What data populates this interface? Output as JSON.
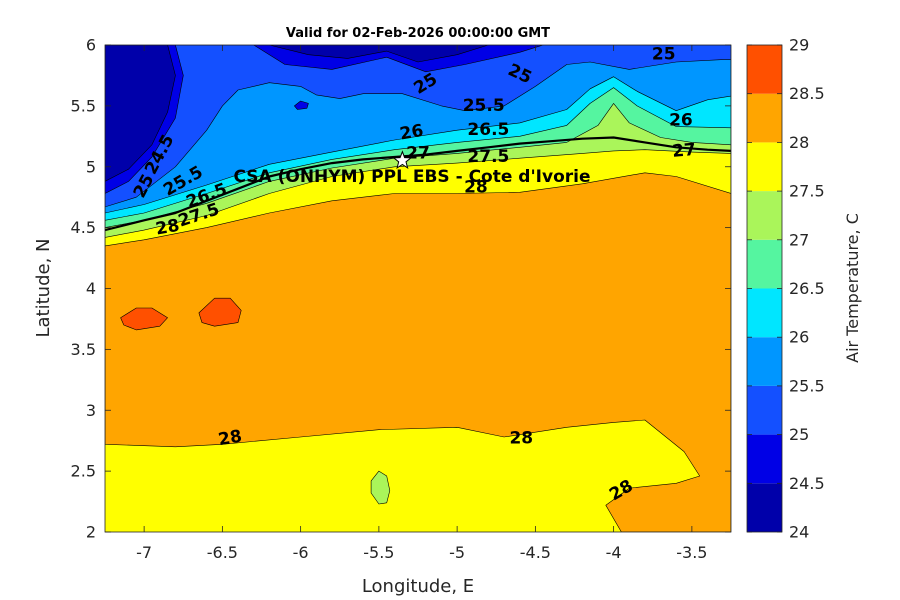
{
  "chart_data": {
    "type": "contourf",
    "title": "Valid for 02-Feb-2026 00:00:00 GMT",
    "xlabel": "Longitude, E",
    "ylabel": "Latitude, N",
    "xlim": [
      -7.25,
      -3.25
    ],
    "ylim": [
      2,
      6
    ],
    "xticks": [
      -7,
      -6.5,
      -6,
      -5.5,
      -5,
      -4.5,
      -4,
      -3.5
    ],
    "yticks": [
      2,
      2.5,
      3,
      3.5,
      4,
      4.5,
      5,
      5.5,
      6
    ],
    "colorbar": {
      "label": "Air Temperature, C",
      "levels": [
        24,
        24.5,
        25,
        25.5,
        26,
        26.5,
        27,
        27.5,
        28,
        28.5,
        29
      ],
      "colors": [
        "#0000aa",
        "#0000e6",
        "#1450ff",
        "#0096ff",
        "#00e6ff",
        "#55f5a0",
        "#aaf55a",
        "#ffff00",
        "#ffa500",
        "#ff5000",
        "#ff0000"
      ]
    },
    "bands": [
      {
        "level": 28,
        "color": "#ffa500",
        "points": [
          [
            -7.25,
            2.72
          ],
          [
            -6.8,
            2.7
          ],
          [
            -6.5,
            2.72
          ],
          [
            -6.0,
            2.78
          ],
          [
            -5.5,
            2.84
          ],
          [
            -5.0,
            2.86
          ],
          [
            -4.7,
            2.78
          ],
          [
            -4.3,
            2.86
          ],
          [
            -4.0,
            2.9
          ],
          [
            -3.8,
            2.92
          ],
          [
            -3.55,
            2.66
          ],
          [
            -3.45,
            2.46
          ],
          [
            -3.6,
            2.4
          ],
          [
            -3.9,
            2.36
          ],
          [
            -4.05,
            2.22
          ],
          [
            -3.95,
            2.0
          ],
          [
            -3.25,
            2.0
          ],
          [
            -3.25,
            6.0
          ],
          [
            -7.25,
            6.0
          ]
        ]
      },
      {
        "level": 27.5,
        "color": "#ffff00",
        "points": [
          [
            -7.25,
            4.35
          ],
          [
            -7.0,
            4.4
          ],
          [
            -6.6,
            4.5
          ],
          [
            -6.2,
            4.62
          ],
          [
            -5.8,
            4.72
          ],
          [
            -5.4,
            4.78
          ],
          [
            -5.0,
            4.78
          ],
          [
            -4.6,
            4.79
          ],
          [
            -4.2,
            4.86
          ],
          [
            -3.8,
            4.95
          ],
          [
            -3.6,
            4.92
          ],
          [
            -3.25,
            4.78
          ],
          [
            -3.25,
            6.0
          ],
          [
            -7.25,
            6.0
          ]
        ]
      },
      {
        "level": 27,
        "color": "#aaf55a",
        "points": [
          [
            -7.25,
            4.42
          ],
          [
            -7.0,
            4.48
          ],
          [
            -6.6,
            4.6
          ],
          [
            -6.2,
            4.78
          ],
          [
            -5.8,
            4.92
          ],
          [
            -5.4,
            5.0
          ],
          [
            -5.0,
            5.03
          ],
          [
            -4.6,
            5.07
          ],
          [
            -4.2,
            5.11
          ],
          [
            -4.0,
            5.13
          ],
          [
            -3.8,
            5.14
          ],
          [
            -3.5,
            5.12
          ],
          [
            -3.25,
            5.11
          ],
          [
            -3.25,
            6.0
          ],
          [
            -7.25,
            6.0
          ]
        ]
      },
      {
        "level": 26.5,
        "color": "#55f5a0",
        "points": [
          [
            -7.25,
            4.5
          ],
          [
            -7.0,
            4.56
          ],
          [
            -6.6,
            4.7
          ],
          [
            -6.2,
            4.88
          ],
          [
            -5.8,
            4.99
          ],
          [
            -5.4,
            5.07
          ],
          [
            -5.0,
            5.11
          ],
          [
            -4.6,
            5.16
          ],
          [
            -4.3,
            5.2
          ],
          [
            -4.1,
            5.34
          ],
          [
            -4.0,
            5.52
          ],
          [
            -3.9,
            5.36
          ],
          [
            -3.7,
            5.24
          ],
          [
            -3.5,
            5.2
          ],
          [
            -3.25,
            5.18
          ],
          [
            -3.25,
            6.0
          ],
          [
            -7.25,
            6.0
          ]
        ]
      },
      {
        "level": 26,
        "color": "#00e6ff",
        "points": [
          [
            -7.25,
            4.56
          ],
          [
            -7.0,
            4.62
          ],
          [
            -6.6,
            4.78
          ],
          [
            -6.2,
            4.95
          ],
          [
            -5.8,
            5.06
          ],
          [
            -5.4,
            5.14
          ],
          [
            -5.0,
            5.2
          ],
          [
            -4.6,
            5.25
          ],
          [
            -4.3,
            5.34
          ],
          [
            -4.15,
            5.52
          ],
          [
            -4.0,
            5.65
          ],
          [
            -3.85,
            5.5
          ],
          [
            -3.6,
            5.33
          ],
          [
            -3.25,
            5.32
          ],
          [
            -3.25,
            6.0
          ],
          [
            -7.25,
            6.0
          ]
        ]
      },
      {
        "level": 25.5,
        "color": "#0096ff",
        "points": [
          [
            -7.25,
            4.62
          ],
          [
            -7.0,
            4.69
          ],
          [
            -6.6,
            4.85
          ],
          [
            -6.2,
            5.02
          ],
          [
            -5.8,
            5.12
          ],
          [
            -5.4,
            5.22
          ],
          [
            -5.0,
            5.3
          ],
          [
            -4.6,
            5.36
          ],
          [
            -4.3,
            5.47
          ],
          [
            -4.15,
            5.64
          ],
          [
            -4.0,
            5.74
          ],
          [
            -3.85,
            5.62
          ],
          [
            -3.6,
            5.46
          ],
          [
            -3.4,
            5.55
          ],
          [
            -3.25,
            5.58
          ],
          [
            -3.25,
            6.0
          ],
          [
            -7.25,
            6.0
          ]
        ]
      },
      {
        "level": 25,
        "color": "#1450ff",
        "points": [
          [
            -7.25,
            4.67
          ],
          [
            -7.05,
            4.75
          ],
          [
            -6.8,
            5.0
          ],
          [
            -6.6,
            5.3
          ],
          [
            -6.5,
            5.5
          ],
          [
            -6.4,
            5.63
          ],
          [
            -6.2,
            5.69
          ],
          [
            -6.0,
            5.66
          ],
          [
            -5.9,
            5.59
          ],
          [
            -5.75,
            5.56
          ],
          [
            -5.6,
            5.6
          ],
          [
            -5.35,
            5.6
          ],
          [
            -5.1,
            5.5
          ],
          [
            -4.95,
            5.46
          ],
          [
            -4.7,
            5.5
          ],
          [
            -4.5,
            5.66
          ],
          [
            -4.3,
            5.84
          ],
          [
            -4.15,
            5.86
          ],
          [
            -3.9,
            5.8
          ],
          [
            -3.6,
            5.86
          ],
          [
            -3.3,
            5.88
          ],
          [
            -3.25,
            5.88
          ],
          [
            -3.25,
            6.0
          ],
          [
            -7.25,
            6.0
          ]
        ]
      },
      {
        "level": 24.5,
        "color": "#0000e6",
        "points": [
          [
            -7.25,
            4.78
          ],
          [
            -7.1,
            4.88
          ],
          [
            -6.95,
            5.08
          ],
          [
            -6.8,
            5.4
          ],
          [
            -6.75,
            5.75
          ],
          [
            -6.8,
            6.0
          ],
          [
            -7.25,
            6.0
          ]
        ]
      },
      {
        "level": 24.5,
        "color": "#0000e6",
        "points": [
          [
            -6.3,
            6.0
          ],
          [
            -6.1,
            5.84
          ],
          [
            -5.8,
            5.8
          ],
          [
            -5.45,
            5.9
          ],
          [
            -5.2,
            5.78
          ],
          [
            -4.95,
            5.84
          ],
          [
            -4.6,
            5.94
          ],
          [
            -4.45,
            6.0
          ]
        ]
      },
      {
        "level": 24.5,
        "color": "#0000e6",
        "points": [
          [
            -6.04,
            5.5
          ],
          [
            -6.0,
            5.54
          ],
          [
            -5.95,
            5.52
          ],
          [
            -5.96,
            5.48
          ],
          [
            -6.02,
            5.47
          ]
        ]
      },
      {
        "level": 24,
        "color": "#0000aa",
        "points": [
          [
            -7.25,
            4.88
          ],
          [
            -7.1,
            4.98
          ],
          [
            -6.95,
            5.18
          ],
          [
            -6.85,
            5.45
          ],
          [
            -6.8,
            5.75
          ],
          [
            -6.85,
            6.0
          ],
          [
            -7.25,
            6.0
          ]
        ]
      },
      {
        "level": 24,
        "color": "#0000aa",
        "points": [
          [
            -6.2,
            6.0
          ],
          [
            -5.95,
            5.92
          ],
          [
            -5.7,
            5.89
          ],
          [
            -5.45,
            5.95
          ],
          [
            -5.25,
            5.86
          ],
          [
            -5.0,
            5.92
          ],
          [
            -4.8,
            6.0
          ]
        ]
      },
      {
        "level": 28.5,
        "color": "#ff5000",
        "points": [
          [
            -7.15,
            3.76
          ],
          [
            -7.05,
            3.84
          ],
          [
            -6.95,
            3.84
          ],
          [
            -6.85,
            3.76
          ],
          [
            -6.9,
            3.69
          ],
          [
            -7.05,
            3.66
          ],
          [
            -7.13,
            3.7
          ]
        ]
      },
      {
        "level": 28.5,
        "color": "#ff5000",
        "points": [
          [
            -6.65,
            3.8
          ],
          [
            -6.55,
            3.92
          ],
          [
            -6.45,
            3.92
          ],
          [
            -6.38,
            3.82
          ],
          [
            -6.4,
            3.72
          ],
          [
            -6.55,
            3.69
          ],
          [
            -6.63,
            3.72
          ]
        ]
      },
      {
        "level": 27,
        "color": "#aaf55a",
        "points": [
          [
            -5.55,
            2.42
          ],
          [
            -5.55,
            2.32
          ],
          [
            -5.5,
            2.23
          ],
          [
            -5.45,
            2.24
          ],
          [
            -5.43,
            2.34
          ],
          [
            -5.45,
            2.46
          ],
          [
            -5.5,
            2.5
          ]
        ]
      }
    ],
    "contour_labels": [
      {
        "text": "24.5",
        "lon": -6.9,
        "lat": 5.1,
        "rotate": -62
      },
      {
        "text": "25",
        "lon": -7.0,
        "lat": 4.84,
        "rotate": -62
      },
      {
        "text": "25.5",
        "lon": -6.75,
        "lat": 4.88,
        "rotate": -30
      },
      {
        "text": "26.5",
        "lon": -6.6,
        "lat": 4.76,
        "rotate": -20
      },
      {
        "text": "27.5",
        "lon": -6.65,
        "lat": 4.6,
        "rotate": -18
      },
      {
        "text": "28",
        "lon": -6.85,
        "lat": 4.5,
        "rotate": -10
      },
      {
        "text": "25",
        "lon": -5.2,
        "lat": 5.68,
        "rotate": -32
      },
      {
        "text": "25",
        "lon": -4.6,
        "lat": 5.76,
        "rotate": 25
      },
      {
        "text": "25",
        "lon": -3.68,
        "lat": 5.92,
        "rotate": 0
      },
      {
        "text": "25.5",
        "lon": -4.83,
        "lat": 5.5,
        "rotate": 0
      },
      {
        "text": "26",
        "lon": -5.29,
        "lat": 5.28,
        "rotate": -10
      },
      {
        "text": "26.5",
        "lon": -4.8,
        "lat": 5.3,
        "rotate": 0
      },
      {
        "text": "26",
        "lon": -3.57,
        "lat": 5.38,
        "rotate": 0
      },
      {
        "text": "27",
        "lon": -5.25,
        "lat": 5.11,
        "rotate": 0
      },
      {
        "text": "27.5",
        "lon": -4.8,
        "lat": 5.08,
        "rotate": 0
      },
      {
        "text": "27",
        "lon": -3.55,
        "lat": 5.13,
        "rotate": -5
      },
      {
        "text": "28",
        "lon": -4.88,
        "lat": 4.83,
        "rotate": 0
      },
      {
        "text": "28",
        "lon": -6.45,
        "lat": 2.77,
        "rotate": -10
      },
      {
        "text": "28",
        "lon": -4.59,
        "lat": 2.77,
        "rotate": 0
      },
      {
        "text": "28",
        "lon": -3.95,
        "lat": 2.34,
        "rotate": -30
      }
    ],
    "coastline": [
      [
        -7.25,
        4.48
      ],
      [
        -7.0,
        4.56
      ],
      [
        -6.8,
        4.62
      ],
      [
        -6.6,
        4.72
      ],
      [
        -6.4,
        4.82
      ],
      [
        -6.2,
        4.92
      ],
      [
        -6.0,
        4.98
      ],
      [
        -5.8,
        5.03
      ],
      [
        -5.6,
        5.06
      ],
      [
        -5.4,
        5.08
      ],
      [
        -5.2,
        5.1
      ],
      [
        -5.0,
        5.13
      ],
      [
        -4.8,
        5.16
      ],
      [
        -4.6,
        5.19
      ],
      [
        -4.4,
        5.21
      ],
      [
        -4.2,
        5.23
      ],
      [
        -4.0,
        5.24
      ],
      [
        -3.8,
        5.2
      ],
      [
        -3.6,
        5.16
      ],
      [
        -3.4,
        5.14
      ],
      [
        -3.25,
        5.13
      ]
    ],
    "site": {
      "name": "CSA (ONHYM) PPL EBS - Cote d'Ivorie",
      "lon": -5.35,
      "lat": 5.05
    }
  }
}
